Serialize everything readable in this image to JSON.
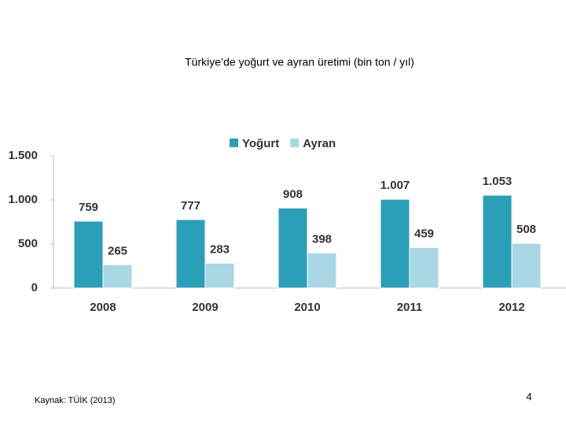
{
  "chart_data": {
    "type": "bar",
    "title": "Türkiye’de yoğurt ve ayran üretimi (bin ton / yıl)",
    "categories": [
      "2008",
      "2009",
      "2010",
      "2011",
      "2012"
    ],
    "series": [
      {
        "name": "Yoğurt",
        "color": "#2a9fb8",
        "values": [
          759,
          777,
          908,
          1007,
          1053
        ],
        "value_labels": [
          "759",
          "777",
          "908",
          "1.007",
          "1.053"
        ]
      },
      {
        "name": "Ayran",
        "color": "#a9d7e6",
        "values": [
          265,
          283,
          398,
          459,
          508
        ]
      }
    ],
    "ylim": [
      0,
      1500
    ],
    "yticks": [
      0,
      500,
      {
        "value": 1000,
        "label": "1.000"
      },
      {
        "value": 1500,
        "label": "1.500"
      }
    ],
    "grid": false,
    "legend": "top"
  },
  "source": "Kaynak: TÜİK (2013)",
  "page_number": "4"
}
